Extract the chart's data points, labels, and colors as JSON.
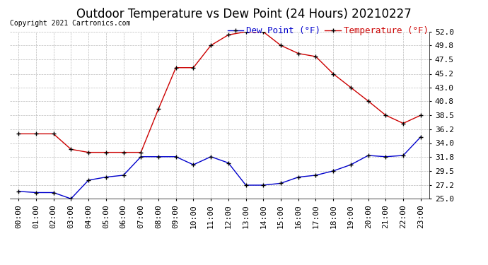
{
  "title": "Outdoor Temperature vs Dew Point (24 Hours) 20210227",
  "copyright": "Copyright 2021 Cartronics.com",
  "legend_dew": "Dew Point (°F)",
  "legend_temp": "Temperature (°F)",
  "x_labels": [
    "00:00",
    "01:00",
    "02:00",
    "03:00",
    "04:00",
    "05:00",
    "06:00",
    "07:00",
    "08:00",
    "09:00",
    "10:00",
    "11:00",
    "12:00",
    "13:00",
    "14:00",
    "15:00",
    "16:00",
    "17:00",
    "18:00",
    "19:00",
    "20:00",
    "21:00",
    "22:00",
    "23:00"
  ],
  "temperature": [
    35.5,
    35.5,
    35.5,
    33.0,
    32.5,
    32.5,
    32.5,
    32.5,
    39.5,
    46.2,
    46.2,
    49.8,
    51.5,
    52.0,
    52.0,
    49.8,
    48.5,
    48.0,
    45.2,
    43.0,
    40.8,
    38.5,
    37.2,
    38.5
  ],
  "dew_point": [
    26.2,
    26.0,
    26.0,
    25.0,
    28.0,
    28.5,
    28.8,
    31.8,
    31.8,
    31.8,
    30.5,
    31.8,
    30.8,
    27.2,
    27.2,
    27.5,
    28.5,
    28.8,
    29.5,
    30.5,
    32.0,
    31.8,
    32.0,
    35.0
  ],
  "ylim": [
    25.0,
    52.0
  ],
  "yticks": [
    25.0,
    27.2,
    29.5,
    31.8,
    34.0,
    36.2,
    38.5,
    40.8,
    43.0,
    45.2,
    47.5,
    49.8,
    52.0
  ],
  "temp_color": "#cc0000",
  "dew_color": "#0000cc",
  "bg_color": "#ffffff",
  "grid_color": "#bbbbbb",
  "title_fontsize": 12,
  "axis_fontsize": 8,
  "legend_fontsize": 9,
  "copyright_fontsize": 7
}
